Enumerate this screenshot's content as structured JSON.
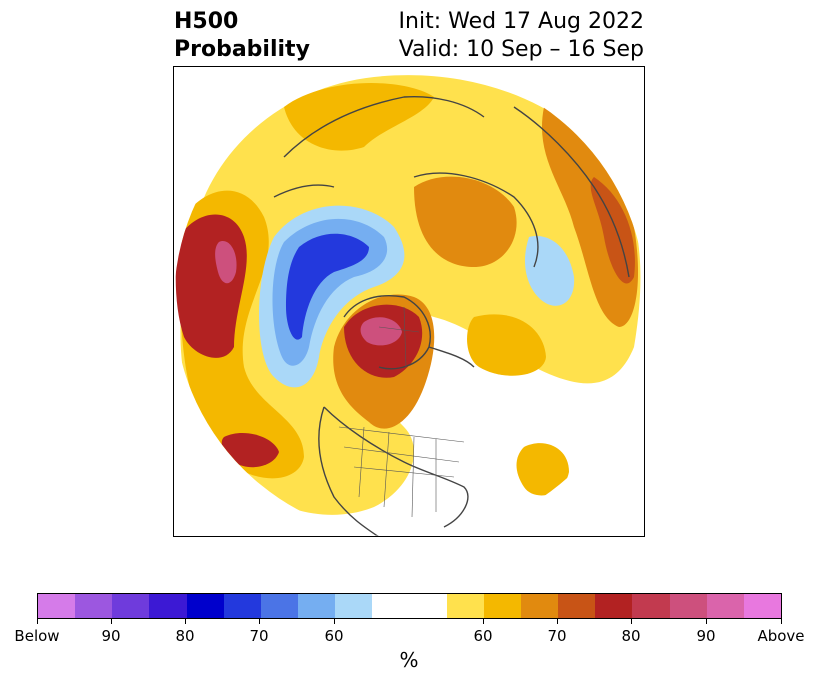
{
  "title": {
    "variable": "H500",
    "subtitle": "Probability",
    "init": "Init: Wed 17 Aug 2022",
    "valid": "Valid: 10 Sep – 16 Sep"
  },
  "colorbar": {
    "unit": "%",
    "colors": [
      "#d57be9",
      "#9c57e0",
      "#6f3bdc",
      "#3c19d4",
      "#0000cc",
      "#2339dd",
      "#4b74e6",
      "#75aef1",
      "#aad8f8",
      "#ffffff",
      "#ffe14d",
      "#f4b800",
      "#e18a0f",
      "#c85416",
      "#b22222",
      "#c23a4f",
      "#cd507d",
      "#da64ab",
      "#e878df"
    ],
    "ticks": [
      "Below",
      "90",
      "80",
      "70",
      "60",
      "60",
      "70",
      "80",
      "90",
      "Above"
    ]
  },
  "map": {
    "projection": "north-polar-stereographic",
    "features": [
      "coastlines",
      "country-borders",
      "state-borders"
    ]
  }
}
